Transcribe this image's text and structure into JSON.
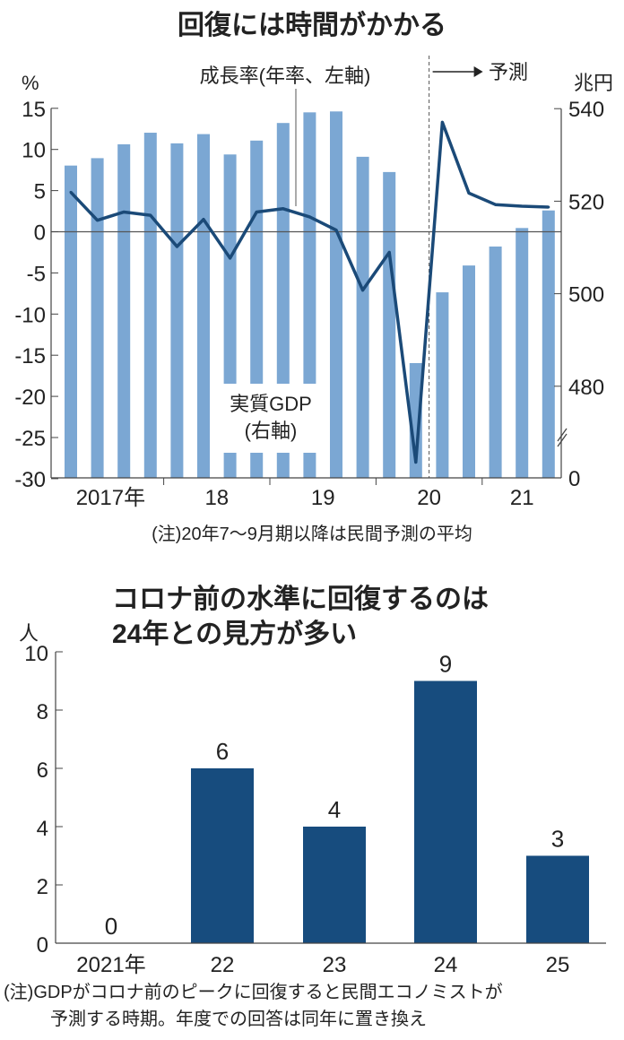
{
  "chart_data": [
    {
      "type": "bar+line",
      "title": "回復には時間がかかる",
      "x_tick_labels": [
        "2017年",
        "18",
        "19",
        "20",
        "21"
      ],
      "categories": [
        "2017Q1",
        "2017Q2",
        "2017Q3",
        "2017Q4",
        "2018Q1",
        "2018Q2",
        "2018Q3",
        "2018Q4",
        "2019Q1",
        "2019Q2",
        "2019Q3",
        "2019Q4",
        "2020Q1",
        "2020Q2",
        "2020Q3",
        "2020Q4",
        "2021Q1",
        "2021Q2",
        "2021Q3"
      ],
      "left_axis": {
        "unit": "%",
        "ylim": [
          -30,
          15
        ],
        "ticks": [
          "15",
          "10",
          "5",
          "0",
          "-5",
          "-10",
          "-15",
          "-20",
          "-25",
          "-30"
        ]
      },
      "right_axis": {
        "unit": "兆円",
        "ylim_shown": [
          470,
          540
        ],
        "ticks": [
          "540",
          "520",
          "500",
          "480",
          "0"
        ],
        "axis_break": true
      },
      "series": [
        {
          "name": "実質GDP",
          "name_note": "(右軸)",
          "type": "bar",
          "axis": "right",
          "color": "#7ba7d3",
          "values": [
            527.7,
            529.3,
            532.3,
            534.8,
            532.5,
            534.5,
            530.1,
            533.1,
            536.9,
            539.2,
            539.4,
            529.6,
            526.3,
            485.0,
            500.3,
            506.1,
            510.2,
            514.2,
            518.0
          ]
        },
        {
          "name": "成長率(年率、左軸)",
          "type": "line",
          "axis": "left",
          "color": "#1b4a78",
          "values": [
            4.8,
            1.4,
            2.4,
            2.0,
            -1.8,
            1.5,
            -3.2,
            2.4,
            2.8,
            1.8,
            0.2,
            -7.1,
            -2.5,
            -28.0,
            13.3,
            4.7,
            3.3,
            3.1,
            3.0
          ]
        }
      ],
      "forecast_label": "予測",
      "forecast_starts_at": "2020Q3",
      "note": "(注)20年7～9月期以降は民間予測の平均",
      "grid": false
    },
    {
      "type": "bar",
      "title_lines": [
        "コロナ前の水準に回復するのは",
        "24年との見方が多い"
      ],
      "ylabel": "人",
      "categories": [
        "2021年",
        "22",
        "23",
        "24",
        "25"
      ],
      "values": [
        0,
        6,
        4,
        9,
        3
      ],
      "data_labels": [
        "0",
        "6",
        "4",
        "9",
        "3"
      ],
      "ylim": [
        0,
        10
      ],
      "y_ticks": [
        "10",
        "8",
        "6",
        "4",
        "2",
        "0"
      ],
      "color": "#174c7e",
      "note_lines": [
        "(注)GDPがコロナ前のピークに回復すると民間エコノミストが",
        "予測する時期。年度での回答は同年に置き換え"
      ],
      "grid": false
    }
  ]
}
